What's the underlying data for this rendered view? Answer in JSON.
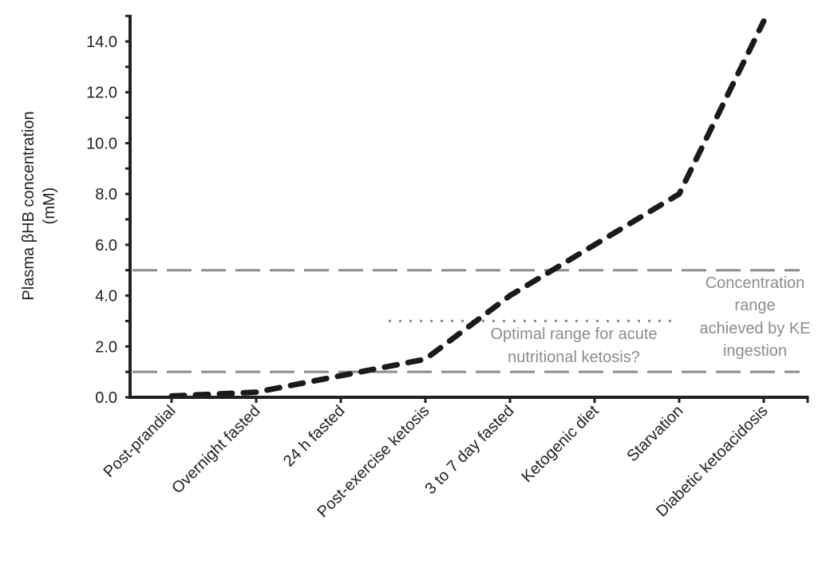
{
  "chart_data": {
    "type": "line",
    "title": "",
    "xlabel": "",
    "ylabel": "Plasma βHB concentration (mM)",
    "ylabel_lines": [
      "Plasma βHB concentration",
      "(mM)"
    ],
    "ylim": [
      0,
      14.0
    ],
    "yticks": [
      "0.0",
      "2.0",
      "4.0",
      "6.0",
      "8.0",
      "10.0",
      "12.0",
      "14.0"
    ],
    "ytick_values": [
      0,
      2,
      4,
      6,
      8,
      10,
      12,
      14
    ],
    "grid": false,
    "legend": null,
    "categories": [
      "Post-prandial",
      "Overnight fasted",
      "24 h fasted",
      "Post-exercise ketosis",
      "3 to 7 day fasted",
      "Ketogenic diet",
      "Starvation",
      "Diabetic ketoacidosis"
    ],
    "series": [
      {
        "name": "Plasma βHB",
        "style": "dashed",
        "color": "#1a1a1a",
        "values": [
          0.05,
          0.2,
          0.85,
          1.5,
          4.0,
          6.0,
          8.0,
          14.8
        ]
      }
    ],
    "reference_lines": [
      {
        "name": "KE range upper",
        "y": 5.0,
        "style": "dashed",
        "color": "#8c8c8c"
      },
      {
        "name": "KE range lower",
        "y": 1.0,
        "style": "dashed",
        "color": "#8c8c8c"
      },
      {
        "name": "Optimal range marker",
        "y": 3.0,
        "style": "dotted",
        "color": "#8c8c8c",
        "x_from": "Post-exercise ketosis",
        "x_to": "Starvation"
      }
    ],
    "annotations": [
      {
        "text_lines": [
          "Optimal range for acute",
          "nutritional ketosis?"
        ]
      },
      {
        "text_lines": [
          "Concentration",
          "range",
          "achieved by KE",
          "ingestion"
        ]
      }
    ]
  }
}
